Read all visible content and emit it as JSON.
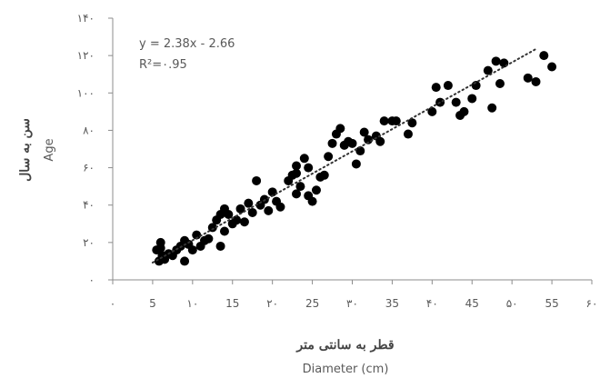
{
  "chart_data": {
    "type": "scatter",
    "xlabel_fa": "قطر به سانتی متر",
    "xlabel": "Diameter (cm)",
    "ylabel_fa": "سن به سال",
    "ylabel": "Age",
    "xlim": [
      0,
      60
    ],
    "ylim": [
      0,
      140
    ],
    "x_ticks": [
      {
        "value": 0,
        "label": "۰"
      },
      {
        "value": 5,
        "label": "5"
      },
      {
        "value": 10,
        "label": "۱۰"
      },
      {
        "value": 15,
        "label": "15"
      },
      {
        "value": 20,
        "label": "۲۰"
      },
      {
        "value": 25,
        "label": "25"
      },
      {
        "value": 30,
        "label": "۳۰"
      },
      {
        "value": 35,
        "label": "35"
      },
      {
        "value": 40,
        "label": "۴۰"
      },
      {
        "value": 45,
        "label": "45"
      },
      {
        "value": 50,
        "label": "۵۰"
      },
      {
        "value": 55,
        "label": "55"
      },
      {
        "value": 60,
        "label": "۶۰"
      }
    ],
    "y_ticks": [
      {
        "value": 0,
        "label": "۰"
      },
      {
        "value": 20,
        "label": "۲۰"
      },
      {
        "value": 40,
        "label": "۴۰"
      },
      {
        "value": 60,
        "label": "۶۰"
      },
      {
        "value": 80,
        "label": "۸۰"
      },
      {
        "value": 100,
        "label": "۱۰۰"
      },
      {
        "value": 120,
        "label": "۱۲۰"
      },
      {
        "value": 140,
        "label": "۱۴۰"
      }
    ],
    "trendline": {
      "slope": 2.38,
      "intercept": -2.66,
      "x_range": [
        5,
        53
      ],
      "style": "dotted"
    },
    "equation_text": "y = 2.38x - 2.66",
    "r2_text": "R²=۰.95",
    "marker_color": "#000000",
    "points": [
      [
        5.5,
        16
      ],
      [
        5.8,
        10
      ],
      [
        6.0,
        20
      ],
      [
        6.2,
        13
      ],
      [
        6.5,
        11
      ],
      [
        7.0,
        14
      ],
      [
        7.5,
        13
      ],
      [
        8.0,
        16
      ],
      [
        8.5,
        18
      ],
      [
        9.0,
        21
      ],
      [
        9.5,
        19
      ],
      [
        10.0,
        16
      ],
      [
        10.5,
        24
      ],
      [
        11.0,
        18
      ],
      [
        11.5,
        21
      ],
      [
        12.0,
        22
      ],
      [
        12.5,
        28
      ],
      [
        13.0,
        32
      ],
      [
        13.5,
        35
      ],
      [
        14.0,
        38
      ],
      [
        14.0,
        26
      ],
      [
        14.5,
        35
      ],
      [
        15.0,
        30
      ],
      [
        15.5,
        32
      ],
      [
        16.0,
        38
      ],
      [
        16.5,
        31
      ],
      [
        17.0,
        41
      ],
      [
        17.5,
        36
      ],
      [
        18.0,
        53
      ],
      [
        18.5,
        40
      ],
      [
        19.0,
        43
      ],
      [
        19.5,
        37
      ],
      [
        20.0,
        47
      ],
      [
        20.5,
        42
      ],
      [
        21.0,
        39
      ],
      [
        22.0,
        53
      ],
      [
        22.5,
        56
      ],
      [
        23.0,
        61
      ],
      [
        23.0,
        46
      ],
      [
        23.5,
        50
      ],
      [
        24.0,
        65
      ],
      [
        24.5,
        45
      ],
      [
        25.0,
        42
      ],
      [
        25.5,
        48
      ],
      [
        26.0,
        55
      ],
      [
        26.5,
        56
      ],
      [
        27.0,
        66
      ],
      [
        27.5,
        73
      ],
      [
        28.0,
        78
      ],
      [
        28.5,
        81
      ],
      [
        29.0,
        72
      ],
      [
        29.5,
        74
      ],
      [
        30.0,
        73
      ],
      [
        31.0,
        69
      ],
      [
        31.5,
        79
      ],
      [
        32.0,
        75
      ],
      [
        33.0,
        77
      ],
      [
        33.5,
        74
      ],
      [
        34.0,
        85
      ],
      [
        35.0,
        85
      ],
      [
        35.5,
        85
      ],
      [
        37.0,
        78
      ],
      [
        37.5,
        84
      ],
      [
        40.0,
        90
      ],
      [
        40.5,
        103
      ],
      [
        41.0,
        95
      ],
      [
        42.0,
        104
      ],
      [
        43.0,
        95
      ],
      [
        43.5,
        88
      ],
      [
        44.0,
        90
      ],
      [
        45.0,
        97
      ],
      [
        45.5,
        104
      ],
      [
        47.0,
        112
      ],
      [
        47.5,
        92
      ],
      [
        48.0,
        117
      ],
      [
        48.5,
        105
      ],
      [
        49.0,
        116
      ],
      [
        52.0,
        108
      ],
      [
        53.0,
        106
      ],
      [
        54.0,
        120
      ],
      [
        55.0,
        114
      ],
      [
        6.0,
        17
      ],
      [
        9.0,
        10
      ],
      [
        13.5,
        18
      ],
      [
        23.0,
        57
      ],
      [
        24.5,
        60
      ],
      [
        30.5,
        62
      ]
    ]
  }
}
